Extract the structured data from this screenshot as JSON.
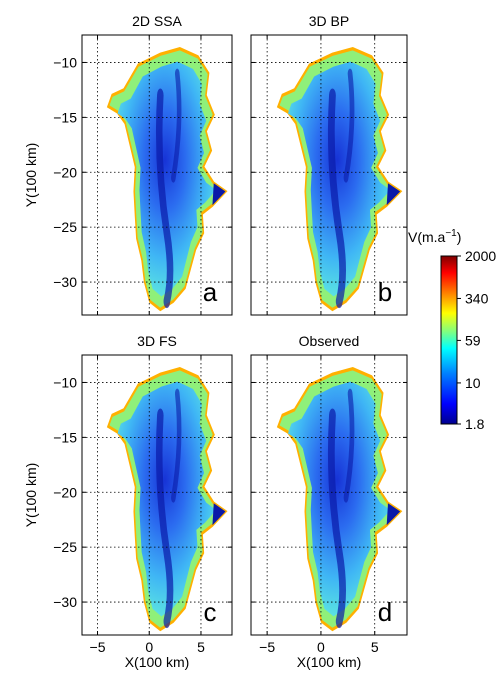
{
  "figure": {
    "colorbar": {
      "title": "V(m.a",
      "title_sup": "−1",
      "title_close": ")",
      "tick_labels": [
        "2000",
        "340",
        "59",
        "10",
        "1.8"
      ],
      "tick_values": [
        2000,
        340,
        59,
        10,
        1.8
      ],
      "scale": "log",
      "colormap": [
        "#00008f",
        "#0000ff",
        "#0080ff",
        "#00ffff",
        "#80ff80",
        "#ffff00",
        "#ff8000",
        "#ff0000",
        "#800000"
      ]
    }
  },
  "chart_data": [
    {
      "type": "heatmap",
      "title": "2D SSA",
      "panel_letter": "a",
      "ylabel": "Y(100 km)",
      "xlabel": "",
      "xlim": [
        -6.5,
        8
      ],
      "ylim": [
        -33,
        -7.5
      ],
      "xticks": [
        -5,
        0,
        5
      ],
      "yticks": [
        -10,
        -15,
        -20,
        -25,
        -30
      ],
      "ytick_labels": [
        "−10",
        "−15",
        "−20",
        "−25",
        "−30"
      ],
      "grid": true
    },
    {
      "type": "heatmap",
      "title": "3D BP",
      "panel_letter": "b",
      "ylabel": "",
      "xlabel": "",
      "xlim": [
        -6.5,
        8
      ],
      "ylim": [
        -33,
        -7.5
      ],
      "xticks": [
        -5,
        0,
        5
      ],
      "yticks": [
        -10,
        -15,
        -20,
        -25,
        -30
      ],
      "grid": true
    },
    {
      "type": "heatmap",
      "title": "3D FS",
      "panel_letter": "c",
      "ylabel": "Y(100 km)",
      "xlabel": "X(100 km)",
      "xlim": [
        -6.5,
        8
      ],
      "ylim": [
        -33,
        -7.5
      ],
      "xticks": [
        -5,
        0,
        5
      ],
      "xtick_labels": [
        "−5",
        "0",
        "5"
      ],
      "yticks": [
        -10,
        -15,
        -20,
        -25,
        -30
      ],
      "ytick_labels": [
        "−10",
        "−15",
        "−20",
        "−25",
        "−30"
      ],
      "grid": true
    },
    {
      "type": "heatmap",
      "title": "Observed",
      "panel_letter": "d",
      "ylabel": "",
      "xlabel": "X(100 km)",
      "xlim": [
        -6.5,
        8
      ],
      "ylim": [
        -33,
        -7.5
      ],
      "xticks": [
        -5,
        0,
        5
      ],
      "xtick_labels": [
        "−5",
        "0",
        "5"
      ],
      "yticks": [
        -10,
        -15,
        -20,
        -25,
        -30
      ],
      "grid": true
    }
  ]
}
